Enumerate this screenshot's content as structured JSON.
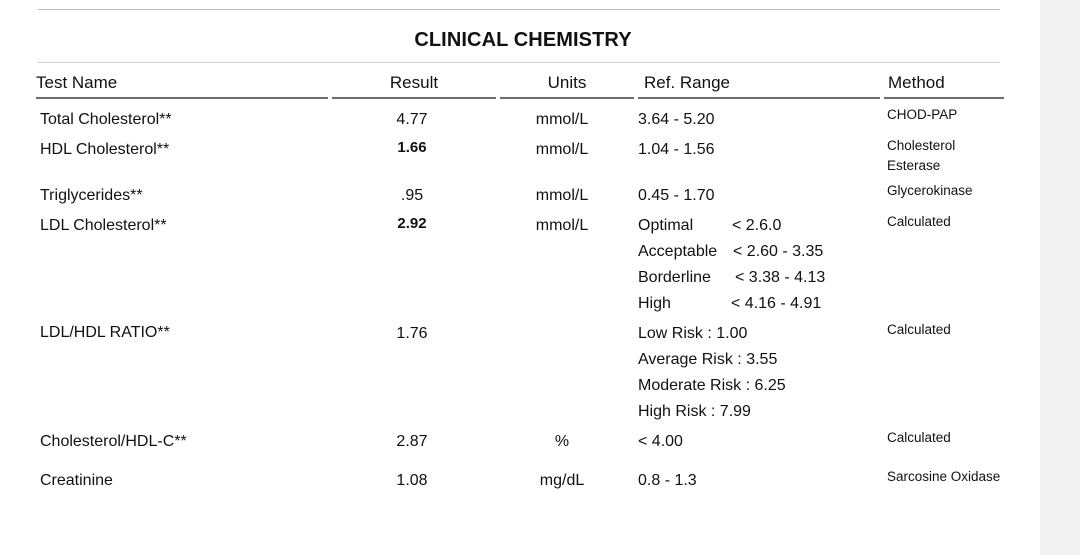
{
  "title": "CLINICAL CHEMISTRY",
  "headers": {
    "test_name": "Test Name",
    "result": "Result",
    "units": "Units",
    "ref_range": "Ref. Range",
    "method": "Method"
  },
  "rows": [
    {
      "name": "Total Cholesterol**",
      "result": "4.77",
      "unit": "mmol/L",
      "ref": "3.64 - 5.20",
      "method": "CHOD-PAP"
    },
    {
      "name": "HDL Cholesterol**",
      "result": "1.66",
      "unit": "mmol/L",
      "ref": "1.04 - 1.56",
      "method_line1": "Cholesterol",
      "method_line2": "Esterase"
    },
    {
      "name": "Triglycerides**",
      "result": ".95",
      "unit": "mmol/L",
      "ref": "0.45 - 1.70",
      "method": "Glycerokinase"
    },
    {
      "name": "LDL Cholesterol**",
      "result": "2.92",
      "unit": "mmol/L",
      "ref_lines": [
        {
          "label": "Optimal",
          "value": "< 2.6.0"
        },
        {
          "label": "Acceptable",
          "value": "< 2.60 - 3.35"
        },
        {
          "label": "Borderline",
          "value": "< 3.38 - 4.13"
        },
        {
          "label": "High",
          "value": "< 4.16 - 4.91"
        }
      ],
      "method": "Calculated"
    },
    {
      "name": "LDL/HDL RATIO**",
      "result": "1.76",
      "unit": "",
      "ref_lines": [
        "Low Risk : 1.00",
        "Average Risk : 3.55",
        "Moderate Risk : 6.25",
        "High Risk : 7.99"
      ],
      "method": "Calculated"
    },
    {
      "name": "Cholesterol/HDL-C**",
      "result": "2.87",
      "unit": "%",
      "ref": "< 4.00",
      "method": "Calculated"
    },
    {
      "name": "Creatinine",
      "result": "1.08",
      "unit": "mg/dL",
      "ref": "0.8 - 1.3",
      "method": "Sarcosine Oxidase"
    }
  ]
}
